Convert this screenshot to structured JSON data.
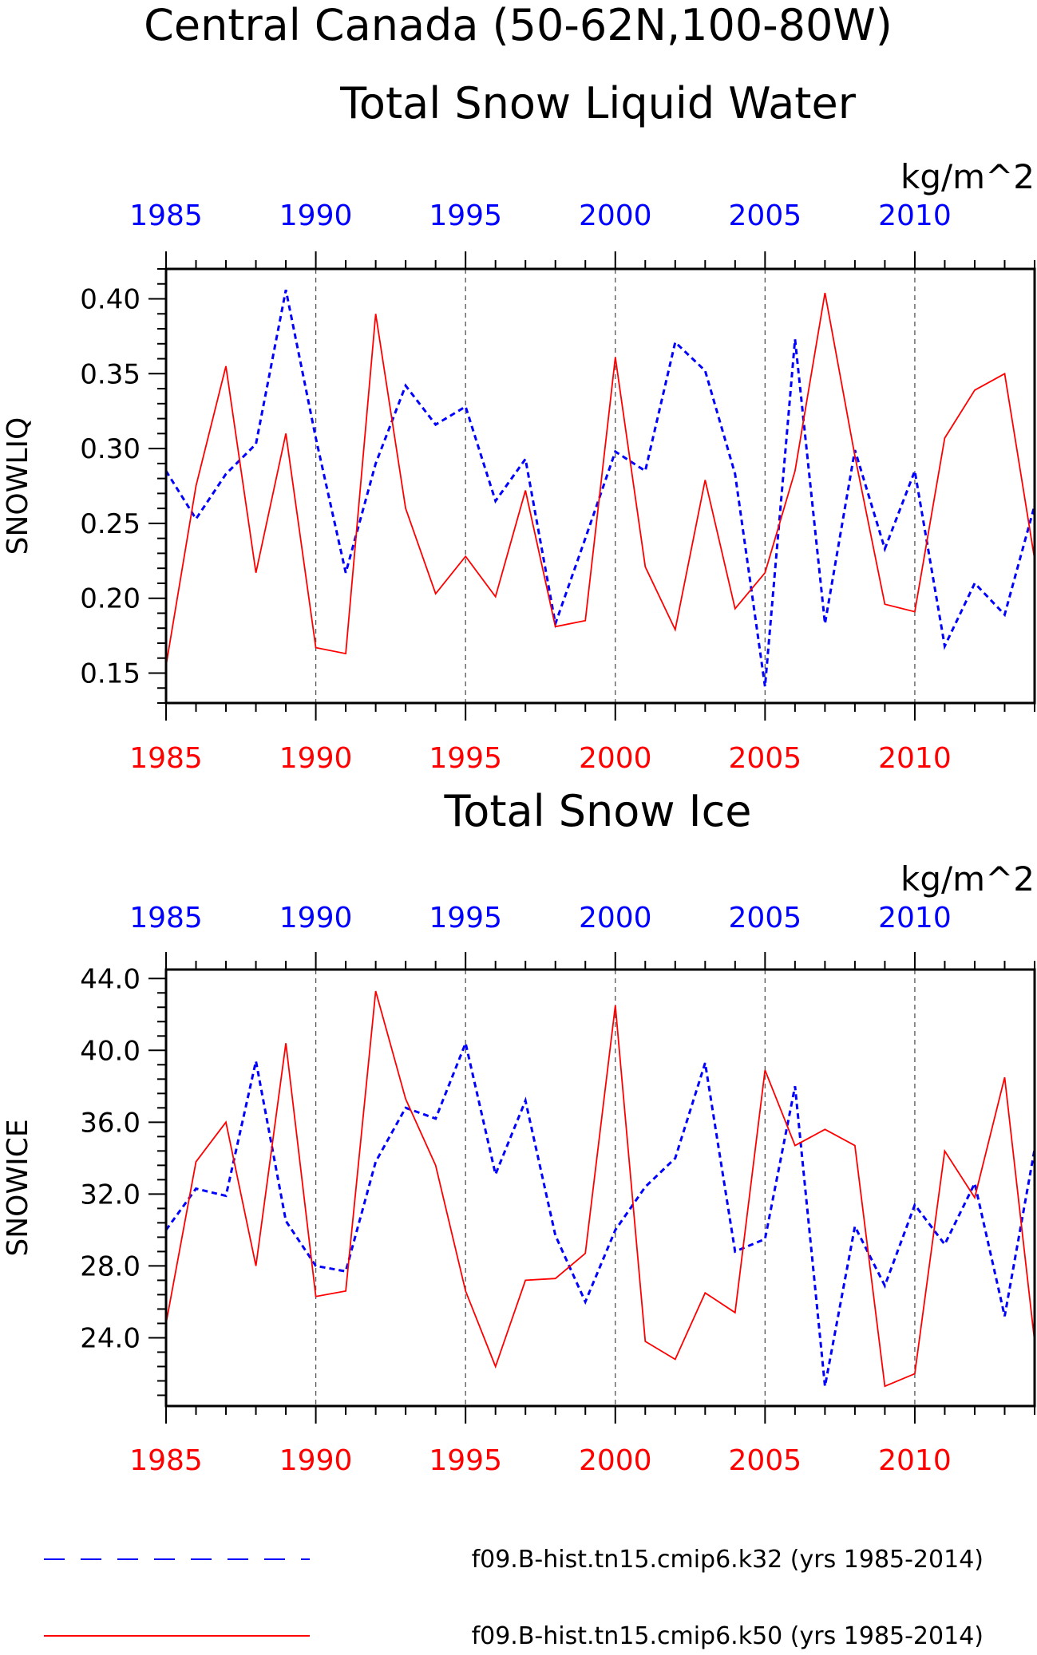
{
  "page": {
    "title_line1": "Central Canada (50-62N,100-80W)"
  },
  "colors": {
    "k32": "#0000ff",
    "k50": "#ff0000",
    "frame": "#000000",
    "grid": "#555555"
  },
  "legend": {
    "items": [
      {
        "series": "k32",
        "label": "f09.B-hist.tn15.cmip6.k32 (yrs 1985-2014)",
        "style": "dashed",
        "color": "#0000ff"
      },
      {
        "series": "k50",
        "label": "f09.B-hist.tn15.cmip6.k50 (yrs 1985-2014)",
        "style": "solid",
        "color": "#ff0000"
      }
    ]
  },
  "chart_data": [
    {
      "type": "line",
      "title": "Total Snow Liquid Water",
      "ylabel": "SNOWLIQ",
      "units": "kg/m^2",
      "xlim": [
        1985,
        2014
      ],
      "ylim": [
        0.13,
        0.42
      ],
      "yticks": [
        "0.15",
        "0.20",
        "0.25",
        "0.30",
        "0.35",
        "0.40"
      ],
      "top_xticks": [
        "1985",
        "1990",
        "1995",
        "2000",
        "2005",
        "2010"
      ],
      "bottom_xticks": [
        "1985",
        "1990",
        "1995",
        "2000",
        "2005",
        "2010"
      ],
      "gridlines_x": [
        1990,
        1995,
        2000,
        2005,
        2010
      ],
      "x": [
        1985,
        1986,
        1987,
        1988,
        1989,
        1990,
        1991,
        1992,
        1993,
        1994,
        1995,
        1996,
        1997,
        1998,
        1999,
        2000,
        2001,
        2002,
        2003,
        2004,
        2005,
        2006,
        2007,
        2008,
        2009,
        2010,
        2011,
        2012,
        2013,
        2014
      ],
      "series": [
        {
          "name": "f09.B-hist.tn15.cmip6.k32",
          "color": "#0000ff",
          "style": "dashed",
          "values": [
            0.285,
            0.253,
            0.283,
            0.303,
            0.406,
            0.307,
            0.217,
            0.29,
            0.342,
            0.316,
            0.328,
            0.265,
            0.293,
            0.183,
            0.24,
            0.298,
            0.285,
            0.371,
            0.352,
            0.283,
            0.141,
            0.373,
            0.183,
            0.299,
            0.233,
            0.285,
            0.168,
            0.21,
            0.189,
            0.262
          ]
        },
        {
          "name": "f09.B-hist.tn15.cmip6.k50",
          "color": "#ff0000",
          "style": "solid",
          "values": [
            0.155,
            0.275,
            0.355,
            0.217,
            0.31,
            0.167,
            0.163,
            0.39,
            0.26,
            0.203,
            0.228,
            0.201,
            0.272,
            0.181,
            0.185,
            0.361,
            0.221,
            0.179,
            0.279,
            0.193,
            0.217,
            0.285,
            0.404,
            0.295,
            0.196,
            0.191,
            0.307,
            0.339,
            0.35,
            0.226
          ]
        }
      ]
    },
    {
      "type": "line",
      "title": "Total Snow Ice",
      "ylabel": "SNOWICE",
      "units": "kg/m^2",
      "xlim": [
        1985,
        2014
      ],
      "ylim": [
        20.2,
        44.5
      ],
      "yticks": [
        "24.0",
        "28.0",
        "32.0",
        "36.0",
        "40.0",
        "44.0"
      ],
      "top_xticks": [
        "1985",
        "1990",
        "1995",
        "2000",
        "2005",
        "2010"
      ],
      "bottom_xticks": [
        "1985",
        "1990",
        "1995",
        "2000",
        "2005",
        "2010"
      ],
      "gridlines_x": [
        1990,
        1995,
        2000,
        2005,
        2010
      ],
      "x": [
        1985,
        1986,
        1987,
        1988,
        1989,
        1990,
        1991,
        1992,
        1993,
        1994,
        1995,
        1996,
        1997,
        1998,
        1999,
        2000,
        2001,
        2002,
        2003,
        2004,
        2005,
        2006,
        2007,
        2008,
        2009,
        2010,
        2011,
        2012,
        2013,
        2014
      ],
      "series": [
        {
          "name": "f09.B-hist.tn15.cmip6.k32",
          "color": "#0000ff",
          "style": "dashed",
          "values": [
            30.0,
            32.3,
            31.9,
            39.4,
            30.5,
            28.0,
            27.7,
            33.8,
            36.8,
            36.2,
            40.4,
            33.1,
            37.2,
            29.7,
            26.0,
            30.0,
            32.4,
            34.0,
            39.3,
            28.8,
            29.5,
            38.0,
            21.3,
            30.2,
            26.9,
            31.4,
            29.2,
            32.6,
            25.2,
            34.5
          ]
        },
        {
          "name": "f09.B-hist.tn15.cmip6.k50",
          "color": "#ff0000",
          "style": "solid",
          "values": [
            24.8,
            33.8,
            36.0,
            28.0,
            40.4,
            26.3,
            26.6,
            43.3,
            37.3,
            33.6,
            26.6,
            22.4,
            27.2,
            27.3,
            28.7,
            42.5,
            23.8,
            22.8,
            26.5,
            25.4,
            38.9,
            34.7,
            35.6,
            34.7,
            21.3,
            22.0,
            34.4,
            31.8,
            38.5,
            23.8
          ]
        }
      ]
    }
  ]
}
